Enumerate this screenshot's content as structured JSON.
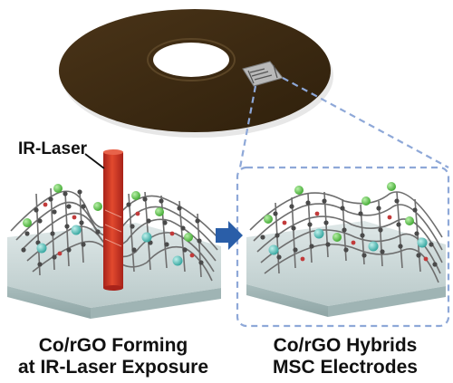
{
  "labels": {
    "laser": "IR-Laser"
  },
  "captions": {
    "left_line1": "Co/rGO Forming",
    "left_line2": "at IR-Laser Exposure",
    "right_line1": "Co/rGO Hybrids",
    "right_line2": "MSC Electrodes"
  },
  "colors": {
    "disc": "#3e2a12",
    "laser": "#d03a22",
    "arrow": "#2a5ea8",
    "dashed_outline": "#8ea8d8",
    "substrate": "#c9d6d6",
    "carbon_atom": "#4a4a4a",
    "cobalt_atom_green": "#5cc94a",
    "cobalt_atom_cyan": "#58c8c0"
  }
}
